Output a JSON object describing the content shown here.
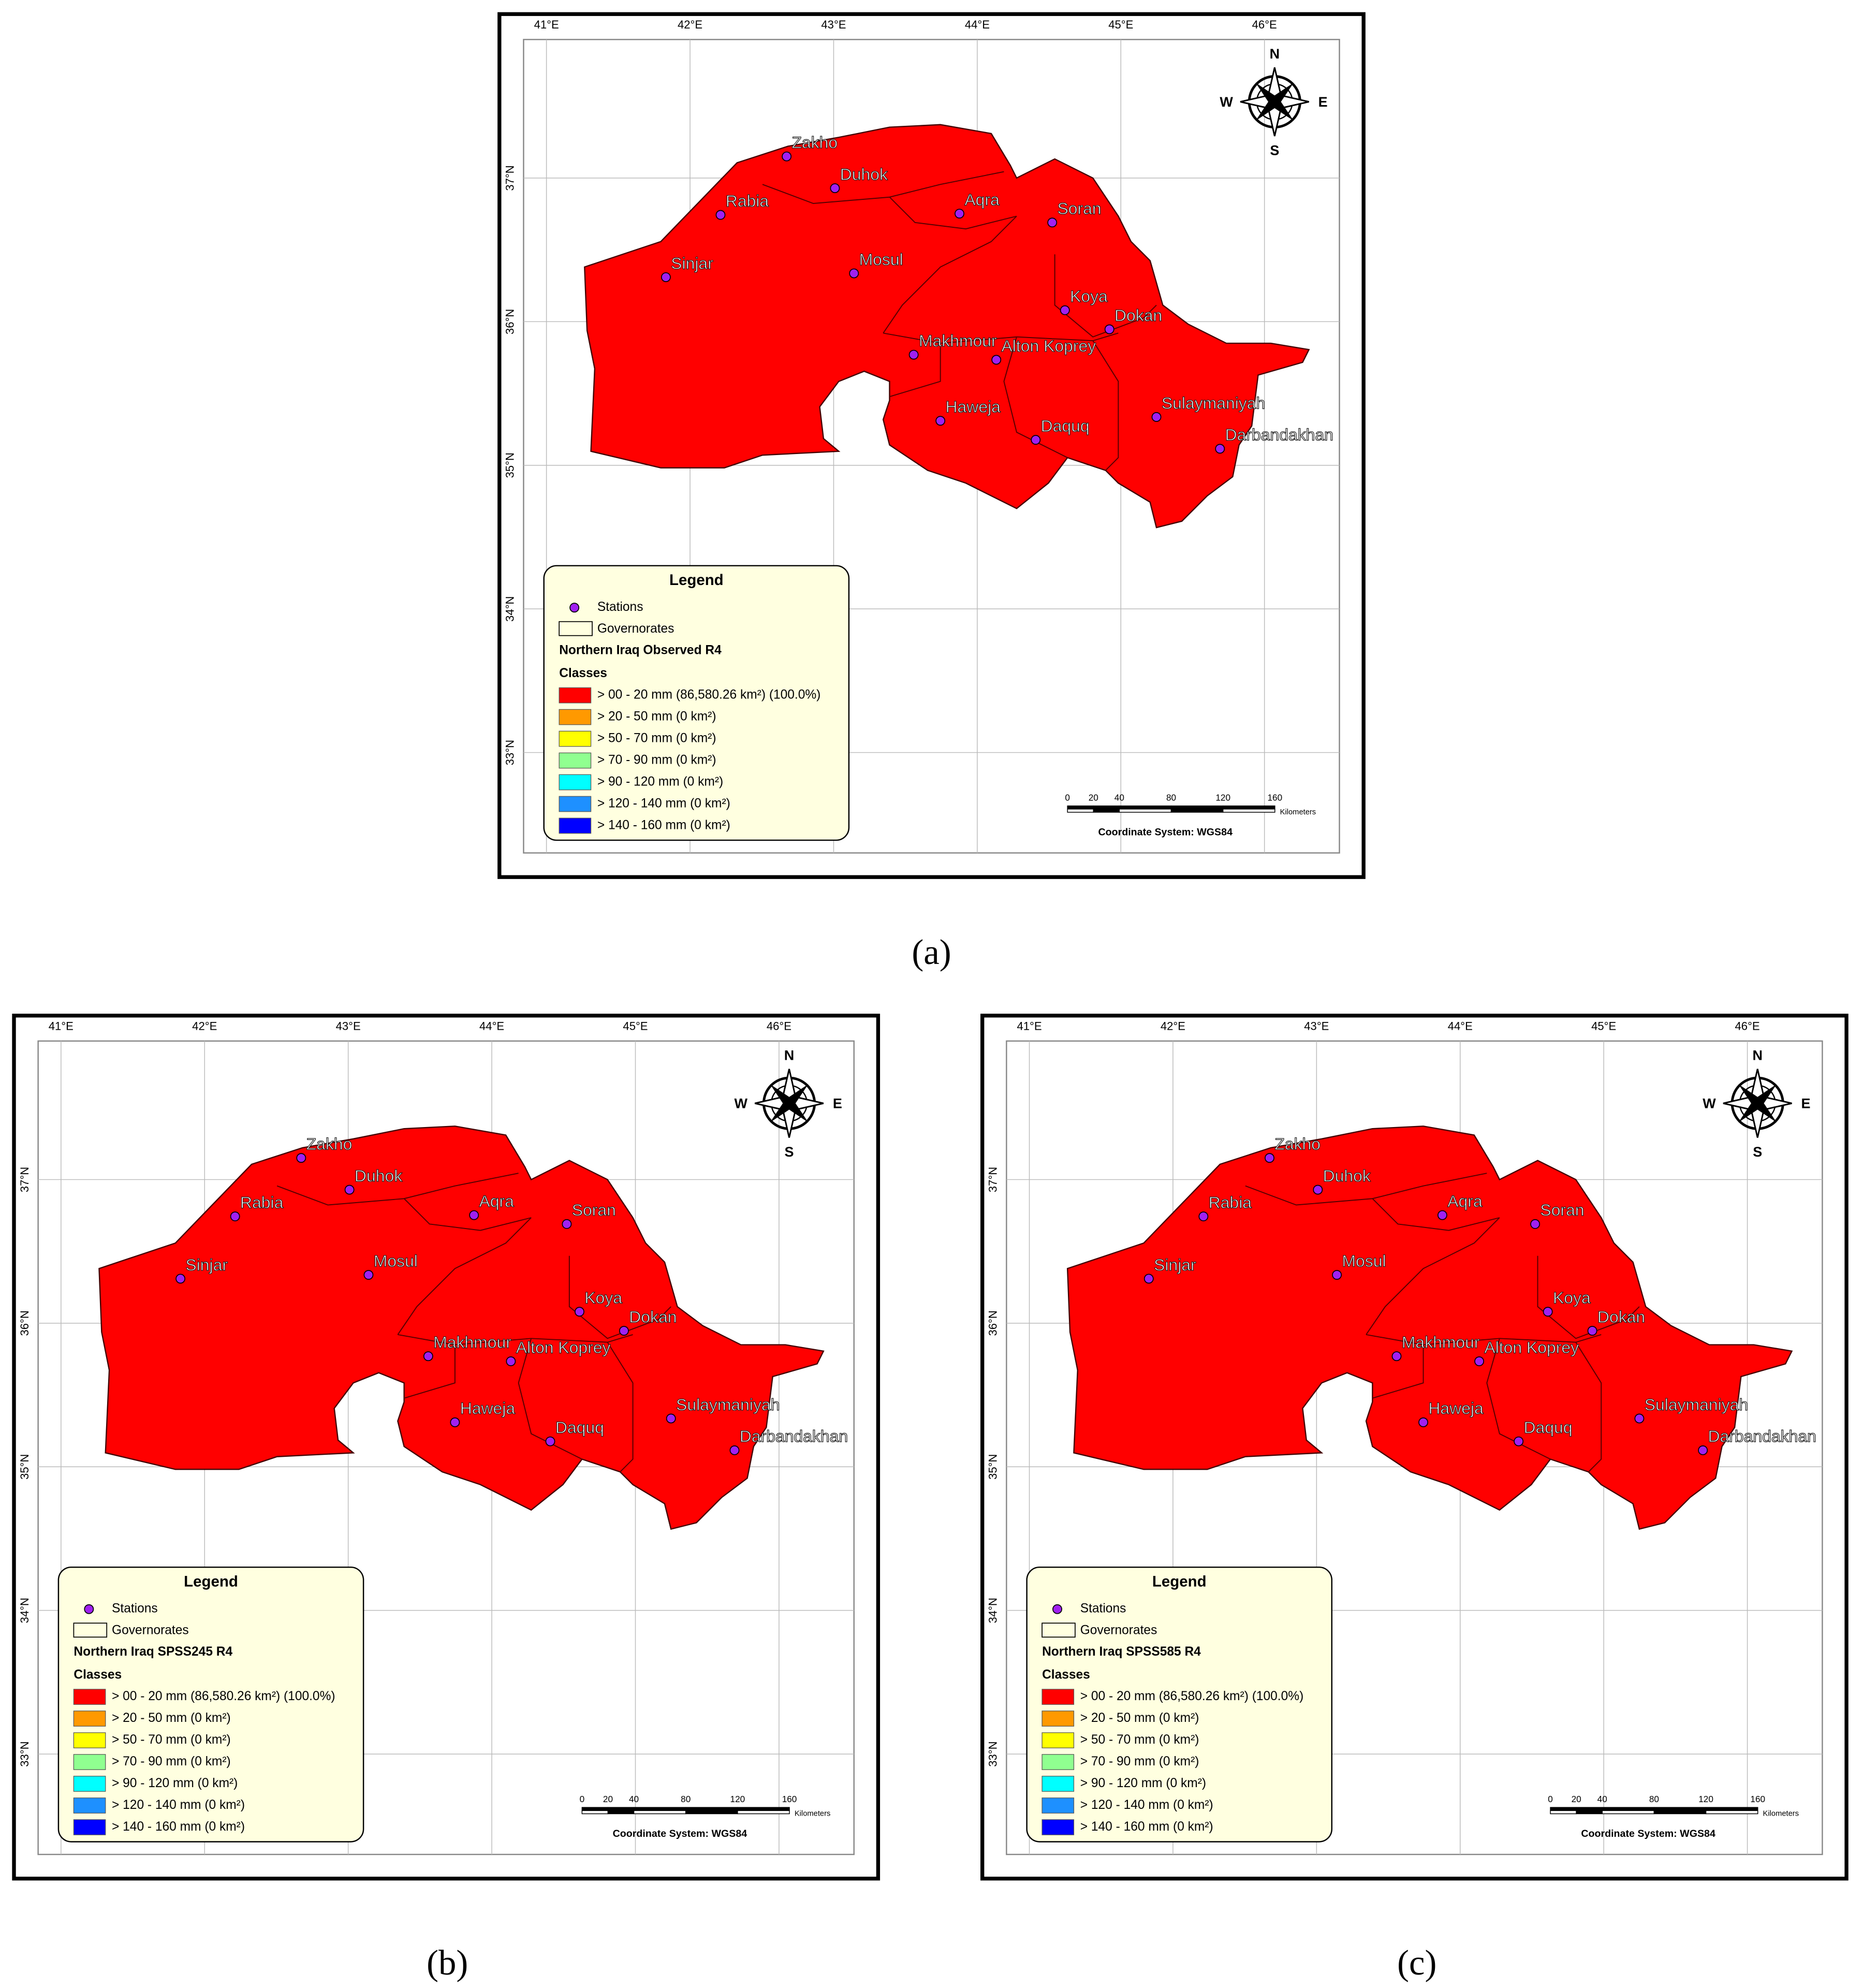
{
  "panels": [
    {
      "label": "(a)",
      "legend_subtitle": "Northern Iraq Observed R4"
    },
    {
      "label": "(b)",
      "legend_subtitle": "Northern Iraq SPSS245 R4"
    },
    {
      "label": "(c)",
      "legend_subtitle": "Northern Iraq SPSS585 R4"
    }
  ],
  "map": {
    "region_color": "#ff0000",
    "station_color": "#a020f0",
    "lon_ticks": [
      "41°E",
      "42°E",
      "43°E",
      "44°E",
      "45°E",
      "46°E"
    ],
    "lat_ticks": [
      "37°N",
      "36°N",
      "35°N",
      "34°N",
      "33°N"
    ],
    "stations": [
      "Zakho",
      "Duhok",
      "Rabia",
      "Aqra",
      "Soran",
      "Sinjar",
      "Mosul",
      "Koya",
      "Dokan",
      "Makhmour",
      "Alton Koprey",
      "Haweja",
      "Daquq",
      "Sulaymaniyah",
      "Darbandakhan"
    ],
    "compass": {
      "n": "N",
      "e": "E",
      "s": "S",
      "w": "W"
    },
    "legend": {
      "title": "Legend",
      "stations": "Stations",
      "governorates": "Governorates",
      "classes_title": "Classes",
      "classes": [
        {
          "label": "> 00 - 20 mm (86,580.26 km²) (100.0%)",
          "color": "#ff0000"
        },
        {
          "label": "> 20 - 50 mm (0 km²)",
          "color": "#ff9900"
        },
        {
          "label": "> 50 - 70 mm (0 km²)",
          "color": "#ffff00"
        },
        {
          "label": "> 70 - 90 mm (0 km²)",
          "color": "#90ff90"
        },
        {
          "label": "> 90 - 120 mm (0 km²)",
          "color": "#00ffff"
        },
        {
          "label": "> 120 - 140 mm (0 km²)",
          "color": "#1e90ff"
        },
        {
          "label": "> 140 - 160 mm (0 km²)",
          "color": "#0000ff"
        }
      ]
    },
    "scale_bar": {
      "ticks": [
        0,
        20,
        40,
        80,
        120,
        160
      ],
      "unit": "Kilometers"
    },
    "coordinate_system": "Coordinate System: WGS84"
  }
}
